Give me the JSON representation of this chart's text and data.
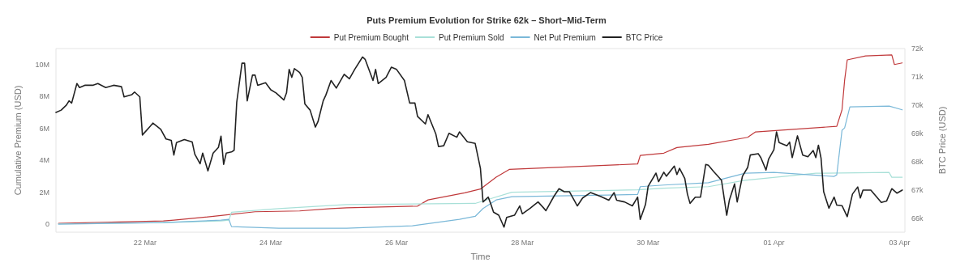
{
  "chart_data": {
    "type": "line",
    "title": "Puts Premium Evolution for Strike 62k – Short–Mid-Term",
    "xlabel": "Time",
    "ylabel": "Cumulative Premium (USD)",
    "y2label": "BTC Price (USD)",
    "legend": "top",
    "marker": "none",
    "line_style": "solid",
    "xlim": [
      "--03-20T14:00",
      "--04-03T02:00"
    ],
    "xticks": [
      {
        "value": "--03-22",
        "label": "22 Mar"
      },
      {
        "value": "--03-24",
        "label": "24 Mar"
      },
      {
        "value": "--03-26",
        "label": "26 Mar"
      },
      {
        "value": "--03-28",
        "label": "28 Mar"
      },
      {
        "value": "--03-30",
        "label": "30 Mar"
      },
      {
        "value": "--04-01",
        "label": "01 Apr"
      },
      {
        "value": "--04-03",
        "label": "03 Apr"
      }
    ],
    "ylim": [
      -500000,
      11000000
    ],
    "yticks": [
      {
        "value": 0,
        "label": "0"
      },
      {
        "value": 2000000,
        "label": "2M"
      },
      {
        "value": 4000000,
        "label": "4M"
      },
      {
        "value": 6000000,
        "label": "6M"
      },
      {
        "value": 8000000,
        "label": "8M"
      },
      {
        "value": 10000000,
        "label": "10M"
      }
    ],
    "y2lim": [
      65500,
      72000
    ],
    "y2ticks": [
      {
        "value": 66000,
        "label": "66k"
      },
      {
        "value": 67000,
        "label": "67k"
      },
      {
        "value": 68000,
        "label": "68k"
      },
      {
        "value": 69000,
        "label": "69k"
      },
      {
        "value": 70000,
        "label": "70k"
      },
      {
        "value": 71000,
        "label": "71k"
      },
      {
        "value": 72000,
        "label": "72k"
      }
    ],
    "series": [
      {
        "name": "Put Premium Bought",
        "color": "#c0393b",
        "x": [
          "--03-20T15:00",
          "--03-22T07:00",
          "--03-22T11:00",
          "--03-23T05:00",
          "--03-23T18:00",
          "--03-24T11:00",
          "--03-24T23:00",
          "--03-25T05:00",
          "--03-26T08:00",
          "--03-26T12:00",
          "--03-27T02:00",
          "--03-27T08:00",
          "--03-27T14:00",
          "--03-27T19:00",
          "--03-29T20:00",
          "--03-29T21:00",
          "--03-30T06:00",
          "--03-30T11:00",
          "--03-30T23:00",
          "--03-31T14:00",
          "--03-31T17:00",
          "--04-02T00:00",
          "--04-02T02:00",
          "--04-02T03:00",
          "--04-02T04:00",
          "--04-02T11:00",
          "--04-02T21:00",
          "--04-02T22:00",
          "--04-03T01:00"
        ],
        "values": [
          50000,
          200000,
          250000,
          540000,
          780000,
          830000,
          980000,
          1030000,
          1130000,
          1520000,
          1960000,
          2200000,
          2940000,
          3430000,
          3770000,
          4310000,
          4450000,
          4800000,
          5000000,
          5440000,
          5780000,
          6130000,
          7160000,
          9020000,
          10290000,
          10540000,
          10600000,
          10000000,
          10100000
        ]
      },
      {
        "name": "Put Premium Sold",
        "color": "#a8e0d8",
        "x": [
          "--03-20T15:00",
          "--03-22T07:00",
          "--03-23T05:00",
          "--03-23T08:00",
          "--03-23T09:00",
          "--03-24T03:00",
          "--03-25T05:00",
          "--03-27T06:00",
          "--03-27T12:00",
          "--03-27T20:00",
          "--03-29T20:00",
          "--03-30T06:00",
          "--03-30T23:00",
          "--03-31T13:00",
          "--04-01T16:00",
          "--04-02T20:00",
          "--04-02T21:00",
          "--04-03T01:00"
        ],
        "values": [
          20000,
          100000,
          200000,
          250000,
          750000,
          980000,
          1230000,
          1300000,
          1600000,
          2000000,
          2150000,
          2250000,
          2350000,
          2750000,
          3190000,
          3240000,
          2940000,
          2940000
        ]
      },
      {
        "name": "Net Put Premium",
        "color": "#7ab8d8",
        "x": [
          "--03-20T15:00",
          "--03-22T07:00",
          "--03-23T05:00",
          "--03-23T08:00",
          "--03-23T09:00",
          "--03-24T03:00",
          "--03-25T05:00",
          "--03-26T06:00",
          "--03-27T00:00",
          "--03-27T06:00",
          "--03-27T09:00",
          "--03-27T14:00",
          "--03-27T20:00",
          "--03-29T20:00",
          "--03-29T21:00",
          "--03-30T06:00",
          "--03-30T23:00",
          "--03-31T13:00",
          "--04-01T00:00",
          "--04-01T23:00",
          "--04-02T00:00",
          "--04-02T02:00",
          "--04-02T03:00",
          "--04-02T05:00",
          "--04-02T20:00",
          "--04-03T01:00"
        ],
        "values": [
          0,
          100000,
          250000,
          300000,
          -150000,
          -250000,
          -250000,
          -100000,
          300000,
          490000,
          980000,
          1520000,
          1720000,
          1860000,
          2350000,
          2450000,
          2600000,
          3190000,
          3240000,
          2990000,
          3090000,
          5880000,
          6030000,
          7350000,
          7400000,
          7160000
        ]
      },
      {
        "name": "BTC Price",
        "color": "#222222",
        "axis": "y2",
        "x": [
          "--03-20T14:00",
          "--03-20T16:00",
          "--03-20T18:00",
          "--03-20T19:00",
          "--03-20T20:00",
          "--03-20T22:00",
          "--03-20T23:00",
          "--03-21T01:00",
          "--03-21T04:00",
          "--03-21T06:00",
          "--03-21T09:00",
          "--03-21T12:00",
          "--03-21T15:00",
          "--03-21T16:00",
          "--03-21T19:00",
          "--03-21T20:00",
          "--03-21T22:00",
          "--03-21T23:00",
          "--03-22T02:00",
          "--03-22T03:00",
          "--03-22T06:00",
          "--03-22T08:00",
          "--03-22T10:00",
          "--03-22T11:00",
          "--03-22T12:00",
          "--03-22T15:00",
          "--03-22T18:00",
          "--03-22T19:00",
          "--03-22T21:00",
          "--03-22T22:00",
          "--03-23T00:00",
          "--03-23T02:00",
          "--03-23T04:00",
          "--03-23T05:00",
          "--03-23T06:00",
          "--03-23T07:00",
          "--03-23T09:00",
          "--03-23T10:00",
          "--03-23T11:00",
          "--03-23T13:00",
          "--03-23T14:00",
          "--03-23T15:00",
          "--03-23T17:00",
          "--03-23T18:00",
          "--03-23T19:00",
          "--03-23T22:00",
          "--03-24T00:00",
          "--03-24T02:00",
          "--03-24T05:00",
          "--03-24T06:00",
          "--03-24T07:00",
          "--03-24T08:00",
          "--03-24T09:00",
          "--03-24T11:00",
          "--03-24T12:00",
          "--03-24T13:00",
          "--03-24T15:00",
          "--03-24T17:00",
          "--03-24T18:00",
          "--03-24T20:00",
          "--03-24T21:00",
          "--03-24T23:00",
          "--03-25T01:00",
          "--03-25T04:00",
          "--03-25T06:00",
          "--03-25T08:00",
          "--03-25T11:00",
          "--03-25T12:00",
          "--03-25T15:00",
          "--03-25T16:00",
          "--03-25T17:00",
          "--03-25T20:00",
          "--03-25T22:00",
          "--03-26T00:00",
          "--03-26T03:00",
          "--03-26T05:00",
          "--03-26T07:00",
          "--03-26T08:00",
          "--03-26T11:00",
          "--03-26T12:00",
          "--03-26T15:00",
          "--03-26T16:00",
          "--03-26T18:00",
          "--03-26T20:00",
          "--03-26T23:00",
          "--03-27T00:00",
          "--03-27T03:00",
          "--03-27T06:00",
          "--03-27T08:00",
          "--03-27T09:00",
          "--03-27T11:00",
          "--03-27T12:00",
          "--03-27T13:00",
          "--03-27T15:00",
          "--03-27T17:00",
          "--03-27T18:00",
          "--03-27T21:00",
          "--03-27T23:00",
          "--03-28T00:00",
          "--03-28T03:00",
          "--03-28T06:00",
          "--03-28T08:00",
          "--03-28T09:00",
          "--03-28T12:00",
          "--03-28T14:00",
          "--03-28T16:00",
          "--03-28T18:00",
          "--03-28T21:00",
          "--03-28T23:00",
          "--03-29T02:00",
          "--03-29T06:00",
          "--03-29T09:00",
          "--03-29T11:00",
          "--03-29T12:00",
          "--03-29T15:00",
          "--03-29T18:00",
          "--03-29T20:00",
          "--03-29T21:00",
          "--03-29T23:00",
          "--03-30T00:00",
          "--03-30T03:00",
          "--03-30T04:00",
          "--03-30T06:00",
          "--03-30T07:00",
          "--03-30T10:00",
          "--03-30T11:00",
          "--03-30T12:00",
          "--03-30T14:00",
          "--03-30T15:00",
          "--03-30T16:00",
          "--03-30T18:00",
          "--03-30T20:00",
          "--03-30T22:00",
          "--03-30T23:00",
          "--03-31T01:00",
          "--03-31T04:00",
          "--03-31T06:00",
          "--03-31T07:00",
          "--03-31T09:00",
          "--03-31T10:00",
          "--03-31T12:00",
          "--03-31T14:00",
          "--03-31T15:00",
          "--03-31T18:00",
          "--03-31T19:00",
          "--03-31T21:00",
          "--03-31T22:00",
          "--04-01T00:00",
          "--04-01T01:00",
          "--04-01T02:00",
          "--04-01T05:00",
          "--04-01T06:00",
          "--04-01T07:00",
          "--04-01T09:00",
          "--04-01T11:00",
          "--04-01T13:00",
          "--04-01T15:00",
          "--04-01T16:00",
          "--04-01T17:00",
          "--04-01T18:00",
          "--04-01T19:00",
          "--04-01T21:00",
          "--04-01T23:00",
          "--04-02T00:00",
          "--04-02T02:00",
          "--04-02T04:00",
          "--04-02T06:00",
          "--04-02T08:00",
          "--04-02T09:00",
          "--04-02T10:00",
          "--04-02T13:00",
          "--04-02T17:00",
          "--04-02T19:00",
          "--04-02T21:00",
          "--04-02T23:00",
          "--04-03T01:00"
        ],
        "values": [
          69740,
          69820,
          70000,
          70150,
          70070,
          70760,
          70620,
          70700,
          70700,
          70760,
          70620,
          70700,
          70650,
          70290,
          70370,
          70460,
          70290,
          68940,
          69250,
          69360,
          69140,
          68800,
          68750,
          68230,
          68670,
          68780,
          68690,
          68260,
          67920,
          68300,
          67670,
          68300,
          68500,
          68900,
          67900,
          68300,
          68340,
          68400,
          70100,
          71480,
          71480,
          70150,
          71060,
          71060,
          70700,
          70790,
          70540,
          70430,
          70180,
          70430,
          71260,
          70980,
          71290,
          71150,
          70980,
          70040,
          69820,
          69220,
          69410,
          70150,
          70350,
          70870,
          70600,
          71090,
          70930,
          71260,
          71700,
          71620,
          70870,
          71260,
          70760,
          70980,
          71340,
          71260,
          70870,
          70070,
          70070,
          69600,
          69330,
          69660,
          68970,
          68530,
          68560,
          69000,
          68860,
          69050,
          68700,
          68640,
          67760,
          66570,
          66740,
          66490,
          66210,
          66100,
          65680,
          66020,
          66100,
          66430,
          66150,
          66350,
          66570,
          66370,
          66260,
          66760,
          67040,
          66930,
          66930,
          66430,
          66710,
          66900,
          66760,
          66630,
          66900,
          66630,
          66570,
          66430,
          66740,
          65950,
          66480,
          67120,
          67590,
          67290,
          67620,
          67480,
          67840,
          67540,
          67760,
          67400,
          66850,
          66520,
          66740,
          66740,
          67900,
          67870,
          67650,
          67340,
          66100,
          66630,
          67210,
          66570,
          67480,
          67790,
          68230,
          68280,
          68140,
          67700,
          68090,
          68420,
          69050,
          68670,
          68560,
          68690,
          68140,
          68910,
          68230,
          68170,
          68390,
          68140,
          68580,
          68120,
          66930,
          66350,
          66740,
          66460,
          66440,
          66050,
          66850,
          67100,
          66710,
          66990,
          66990,
          66550,
          66600,
          67040,
          66880,
          66990
        ]
      }
    ]
  }
}
